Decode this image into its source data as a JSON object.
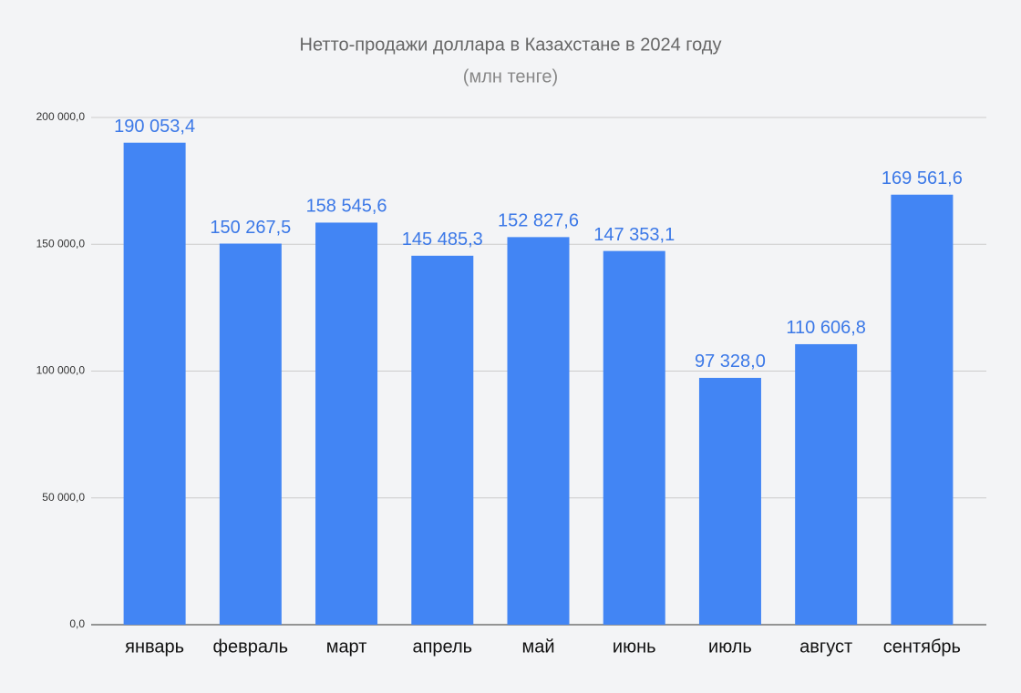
{
  "chart_data": {
    "type": "bar",
    "title": "Нетто-продажи доллара в Казахстане в 2024 году",
    "subtitle": "(млн тенге)",
    "categories": [
      "январь",
      "февраль",
      "март",
      "апрель",
      "май",
      "июнь",
      "июль",
      "август",
      "сентябрь"
    ],
    "values": [
      190053.4,
      150267.5,
      158545.6,
      145485.3,
      152827.6,
      147353.1,
      97328.0,
      110606.8,
      169561.6
    ],
    "value_labels": [
      "190 053,4",
      "150 267,5",
      "158 545,6",
      "145 485,3",
      "152 827,6",
      "147 353,1",
      "97 328,0",
      "110 606,8",
      "169 561,6"
    ],
    "color": "#4285f4",
    "ylim": [
      0,
      200000
    ],
    "yticks": [
      {
        "value": 0,
        "label": "0,0"
      },
      {
        "value": 50000,
        "label": "50 000,0"
      },
      {
        "value": 100000,
        "label": "100 000,0"
      },
      {
        "value": 150000,
        "label": "150 000,0"
      },
      {
        "value": 200000,
        "label": "200 000,0"
      }
    ],
    "grid": true
  }
}
